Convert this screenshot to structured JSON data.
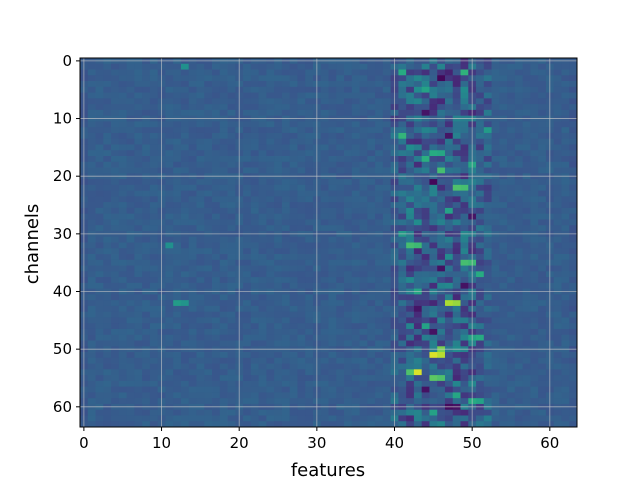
{
  "chart_data": {
    "type": "heatmap",
    "title": "",
    "xlabel": "features",
    "ylabel": "channels",
    "x_range": [
      0,
      63
    ],
    "y_range": [
      0,
      63
    ],
    "y_inverted": true,
    "grid": true,
    "colormap": "viridis",
    "x_ticks": [
      "0",
      "10",
      "20",
      "30",
      "40",
      "50",
      "60"
    ],
    "y_ticks": [
      "0",
      "10",
      "20",
      "30",
      "40",
      "50",
      "60"
    ],
    "value_scale": "0 = dark purple, 1 = yellow (no colorbar shown)",
    "background_level": 0.3,
    "hotspots": [
      {
        "x": 45,
        "y": 51,
        "value": 0.95
      },
      {
        "x": 46,
        "y": 51,
        "value": 0.9
      },
      {
        "x": 43,
        "y": 54,
        "value": 0.95
      },
      {
        "x": 47,
        "y": 42,
        "value": 0.88
      },
      {
        "x": 48,
        "y": 42,
        "value": 0.85
      },
      {
        "x": 46,
        "y": 50,
        "value": 0.8
      },
      {
        "x": 45,
        "y": 55,
        "value": 0.75
      },
      {
        "x": 46,
        "y": 55,
        "value": 0.72
      },
      {
        "x": 42,
        "y": 54,
        "value": 0.72
      },
      {
        "x": 48,
        "y": 22,
        "value": 0.72
      },
      {
        "x": 49,
        "y": 22,
        "value": 0.7
      },
      {
        "x": 42,
        "y": 32,
        "value": 0.7
      },
      {
        "x": 43,
        "y": 32,
        "value": 0.68
      },
      {
        "x": 49,
        "y": 35,
        "value": 0.7
      },
      {
        "x": 50,
        "y": 35,
        "value": 0.68
      },
      {
        "x": 46,
        "y": 19,
        "value": 0.7
      },
      {
        "x": 41,
        "y": 2,
        "value": 0.62
      },
      {
        "x": 41,
        "y": 13,
        "value": 0.66
      },
      {
        "x": 44,
        "y": 17,
        "value": 0.64
      },
      {
        "x": 45,
        "y": 16,
        "value": 0.62
      },
      {
        "x": 46,
        "y": 16,
        "value": 0.6
      },
      {
        "x": 49,
        "y": 2,
        "value": 0.65
      },
      {
        "x": 50,
        "y": 18,
        "value": 0.6
      },
      {
        "x": 51,
        "y": 37,
        "value": 0.62
      },
      {
        "x": 51,
        "y": 48,
        "value": 0.62
      },
      {
        "x": 50,
        "y": 48,
        "value": 0.58
      },
      {
        "x": 43,
        "y": 40,
        "value": 0.6
      },
      {
        "x": 44,
        "y": 46,
        "value": 0.58
      },
      {
        "x": 48,
        "y": 58,
        "value": 0.6
      },
      {
        "x": 50,
        "y": 59,
        "value": 0.62
      },
      {
        "x": 51,
        "y": 59,
        "value": 0.58
      },
      {
        "x": 45,
        "y": 61,
        "value": 0.58
      },
      {
        "x": 47,
        "y": 26,
        "value": 0.58
      },
      {
        "x": 41,
        "y": 30,
        "value": 0.55
      },
      {
        "x": 52,
        "y": 12,
        "value": 0.55
      },
      {
        "x": 44,
        "y": 5,
        "value": 0.58
      },
      {
        "x": 12,
        "y": 42,
        "value": 0.55
      },
      {
        "x": 13,
        "y": 42,
        "value": 0.52
      },
      {
        "x": 13,
        "y": 1,
        "value": 0.5
      },
      {
        "x": 11,
        "y": 32,
        "value": 0.5
      }
    ],
    "cold_spots": [
      {
        "x": 46,
        "y": 3,
        "value": 0.02
      },
      {
        "x": 45,
        "y": 21,
        "value": 0.02
      },
      {
        "x": 46,
        "y": 36,
        "value": 0.05
      },
      {
        "x": 47,
        "y": 60,
        "value": 0.03
      },
      {
        "x": 48,
        "y": 60,
        "value": 0.05
      },
      {
        "x": 44,
        "y": 9,
        "value": 0.06
      },
      {
        "x": 49,
        "y": 39,
        "value": 0.05
      },
      {
        "x": 45,
        "y": 47,
        "value": 0.05
      },
      {
        "x": 47,
        "y": 13,
        "value": 0.06
      },
      {
        "x": 50,
        "y": 27,
        "value": 0.06
      },
      {
        "x": 43,
        "y": 43,
        "value": 0.06
      },
      {
        "x": 44,
        "y": 57,
        "value": 0.05
      }
    ]
  }
}
